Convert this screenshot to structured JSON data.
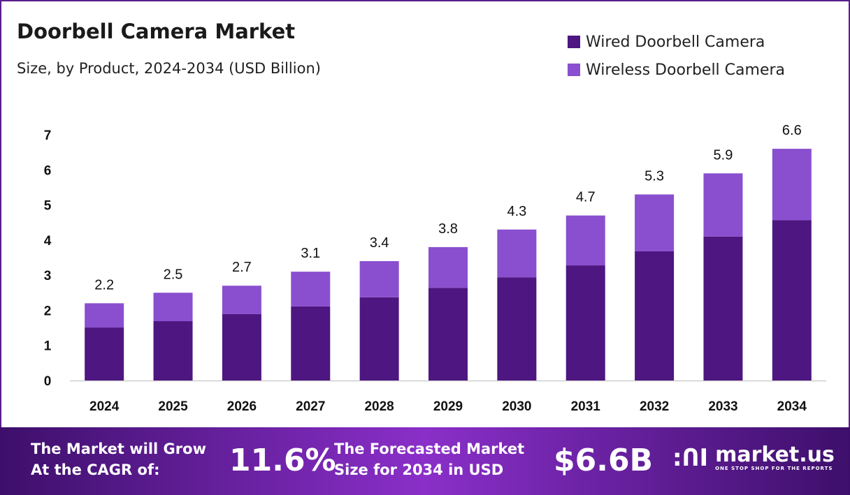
{
  "chart_data": {
    "type": "bar",
    "stacked": true,
    "title": "Doorbell Camera Market",
    "subtitle": "Size, by Product, 2024-2034 (USD Billion)",
    "categories": [
      "2024",
      "2025",
      "2026",
      "2027",
      "2028",
      "2029",
      "2030",
      "2031",
      "2032",
      "2033",
      "2034"
    ],
    "series": [
      {
        "name": "Wired Doorbell Camera",
        "color": "#4e1680",
        "values": [
          1.51,
          1.69,
          1.89,
          2.11,
          2.37,
          2.64,
          2.94,
          3.28,
          3.68,
          4.1,
          4.57
        ]
      },
      {
        "name": "Wireless Doorbell Camera",
        "color": "#8a4fcf",
        "values": [
          0.69,
          0.81,
          0.81,
          0.99,
          1.03,
          1.16,
          1.36,
          1.42,
          1.62,
          1.8,
          2.03
        ]
      }
    ],
    "totals": [
      "2.2",
      "2.5",
      "2.7",
      "3.1",
      "3.4",
      "3.8",
      "4.3",
      "4.7",
      "5.3",
      "5.9",
      "6.6"
    ],
    "total_values": [
      2.2,
      2.5,
      2.7,
      3.1,
      3.4,
      3.8,
      4.3,
      4.7,
      5.3,
      5.9,
      6.6
    ],
    "yticks": [
      "0",
      "1",
      "2",
      "3",
      "4",
      "5",
      "6",
      "7"
    ],
    "ylim": [
      0,
      7
    ],
    "grid": false,
    "legend_position": "top-right"
  },
  "footer": {
    "cagr_label_1": "The Market will Grow",
    "cagr_label_2": "At the CAGR of:",
    "cagr_value": "11.6%",
    "forecast_label_1": "The Forecasted Market",
    "forecast_label_2": "Size for 2034 in USD",
    "forecast_value": "$6.6B",
    "logo_name": "market.us",
    "logo_tagline": "ONE STOP SHOP FOR THE REPORTS"
  }
}
